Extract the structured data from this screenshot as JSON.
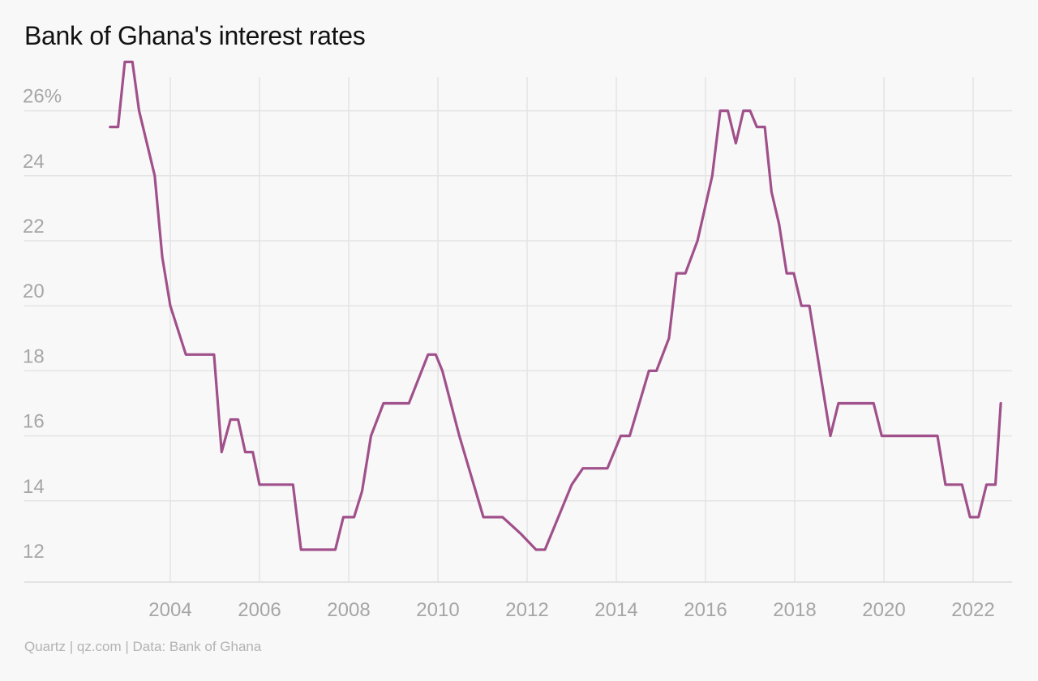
{
  "header": {
    "title": "Bank of Ghana's interest rates"
  },
  "footer": {
    "source": "Quartz | qz.com | Data: Bank of Ghana"
  },
  "colors": {
    "line": "#a0508a",
    "grid": "#e4e4e4",
    "tick": "#a6a6a6",
    "background": "#f8f8f8"
  },
  "chart_data": {
    "type": "line",
    "title": "Bank of Ghana's interest rates",
    "xlabel": "",
    "ylabel": "",
    "xlim": [
      2001.4,
      2023.0
    ],
    "ylim": [
      11.5,
      27.5
    ],
    "x_ticks": [
      2004,
      2006,
      2008,
      2010,
      2012,
      2014,
      2016,
      2018,
      2020,
      2022
    ],
    "x_tick_labels": [
      "2004",
      "2006",
      "2008",
      "2010",
      "2012",
      "2014",
      "2016",
      "2018",
      "2020",
      "2022"
    ],
    "y_ticks": [
      12,
      14,
      16,
      18,
      20,
      22,
      24,
      26
    ],
    "y_tick_labels": [
      "12",
      "14",
      "16",
      "18",
      "20",
      "22",
      "24",
      "26%"
    ],
    "grid": true,
    "series": [
      {
        "x": [
          2002.65,
          2002.83,
          2002.98,
          2003.15,
          2003.3,
          2003.65,
          2003.82,
          2004.0,
          2004.35,
          2004.98,
          2005.15,
          2005.35,
          2005.52,
          2005.68,
          2005.85,
          2006.0,
          2006.75,
          2006.93,
          2007.7,
          2007.88,
          2008.12,
          2008.3,
          2008.5,
          2008.78,
          2009.35,
          2009.78,
          2009.95,
          2010.1,
          2010.48,
          2011.02,
          2011.3,
          2011.45,
          2011.85,
          2012.2,
          2012.4,
          2013.0,
          2013.25,
          2013.8,
          2014.1,
          2014.3,
          2014.73,
          2014.9,
          2015.18,
          2015.35,
          2015.55,
          2015.82,
          2016.15,
          2016.33,
          2016.5,
          2016.68,
          2016.85,
          2017.0,
          2017.15,
          2017.33,
          2017.48,
          2017.65,
          2017.82,
          2017.98,
          2018.15,
          2018.33,
          2018.8,
          2018.98,
          2019.77,
          2019.95,
          2021.2,
          2021.38,
          2021.75,
          2021.93,
          2022.12,
          2022.3,
          2022.5,
          2022.62
        ],
        "values": [
          25.5,
          25.5,
          27.5,
          27.5,
          26.0,
          24.0,
          21.5,
          20.0,
          18.5,
          18.5,
          15.5,
          16.5,
          16.5,
          15.5,
          15.5,
          14.5,
          14.5,
          12.5,
          12.5,
          13.5,
          13.5,
          14.3,
          16.0,
          17.0,
          17.0,
          18.5,
          18.5,
          18.0,
          16.0,
          13.5,
          13.5,
          13.5,
          13.0,
          12.5,
          12.5,
          14.5,
          15.0,
          15.0,
          16.0,
          16.0,
          18.0,
          18.0,
          19.0,
          21.0,
          21.0,
          22.0,
          24.0,
          26.0,
          26.0,
          25.0,
          26.0,
          26.0,
          25.5,
          25.5,
          23.5,
          22.5,
          21.0,
          21.0,
          20.0,
          20.0,
          16.0,
          17.0,
          17.0,
          16.0,
          16.0,
          14.5,
          14.5,
          13.5,
          13.5,
          14.5,
          14.5,
          17.0
        ]
      }
    ]
  }
}
